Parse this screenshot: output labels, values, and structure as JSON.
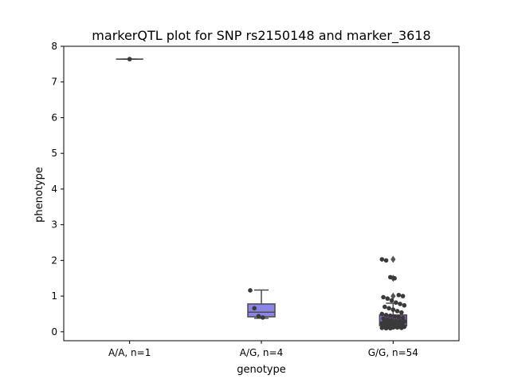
{
  "chart_data": {
    "type": "box",
    "title": "markerQTL plot for SNP rs2150148 and marker_3618",
    "xlabel": "genotype",
    "ylabel": "phenotype",
    "ylim": [
      -0.25,
      8.0
    ],
    "yticks": [
      0,
      1,
      2,
      3,
      4,
      5,
      6,
      7,
      8
    ],
    "categories": [
      "A/A, n=1",
      "A/G, n=4",
      "G/G, n=54"
    ],
    "boxes": [
      {
        "category": "A/A, n=1",
        "q1": 7.64,
        "median": 7.64,
        "q3": 7.64,
        "whisker_low": 7.64,
        "whisker_high": 7.64,
        "fliers": [],
        "color": "#6a5acd"
      },
      {
        "category": "A/G, n=4",
        "q1": 0.42,
        "median": 0.55,
        "q3": 0.78,
        "whisker_low": 0.38,
        "whisker_high": 1.17,
        "fliers": [],
        "color": "#8b86e6"
      },
      {
        "category": "G/G, n=54",
        "q1": 0.17,
        "median": 0.28,
        "q3": 0.47,
        "whisker_low": 0.1,
        "whisker_high": 0.8,
        "fliers": [
          1.0,
          1.5,
          2.03
        ],
        "color": "#8a63d2"
      }
    ],
    "points": [
      {
        "category": "A/A, n=1",
        "values": [
          7.64
        ]
      },
      {
        "category": "A/G, n=4",
        "values": [
          1.16,
          0.66,
          0.44,
          0.4
        ]
      },
      {
        "category": "G/G, n=54",
        "values": [
          2.03,
          2.0,
          1.53,
          1.5,
          1.03,
          1.0,
          0.97,
          0.93,
          0.88,
          0.82,
          0.78,
          0.74,
          0.7,
          0.66,
          0.62,
          0.58,
          0.54,
          0.5,
          0.47,
          0.45,
          0.43,
          0.41,
          0.39,
          0.37,
          0.35,
          0.33,
          0.31,
          0.3,
          0.29,
          0.28,
          0.27,
          0.26,
          0.25,
          0.24,
          0.23,
          0.22,
          0.21,
          0.2,
          0.19,
          0.18,
          0.17,
          0.16,
          0.15,
          0.15,
          0.14,
          0.14,
          0.13,
          0.13,
          0.12,
          0.12,
          0.11,
          0.11,
          0.1,
          0.1
        ]
      }
    ],
    "grid": false,
    "legend": "none"
  }
}
